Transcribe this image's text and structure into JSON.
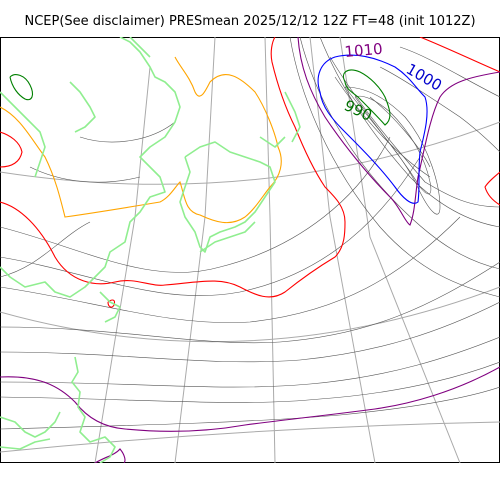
{
  "title": "NCEP(See disclaimer) PRESmean 2025/12/12 12Z FT=48 (init 1012Z)",
  "isobar_labels": [
    {
      "text": "1010",
      "color": "#800080"
    },
    {
      "text": "1000",
      "color": "#0000cc"
    },
    {
      "text": "990",
      "color": "#007000"
    }
  ],
  "colors": {
    "coastline": "#90ee90",
    "graticule": "#aaaaaa",
    "isobar": "#555555",
    "contour_1010": "#800080",
    "contour_1000": "#0000ff",
    "contour_990": "#008000",
    "contour_1020": "#ff0000",
    "contour_orange": "#ffa500"
  }
}
